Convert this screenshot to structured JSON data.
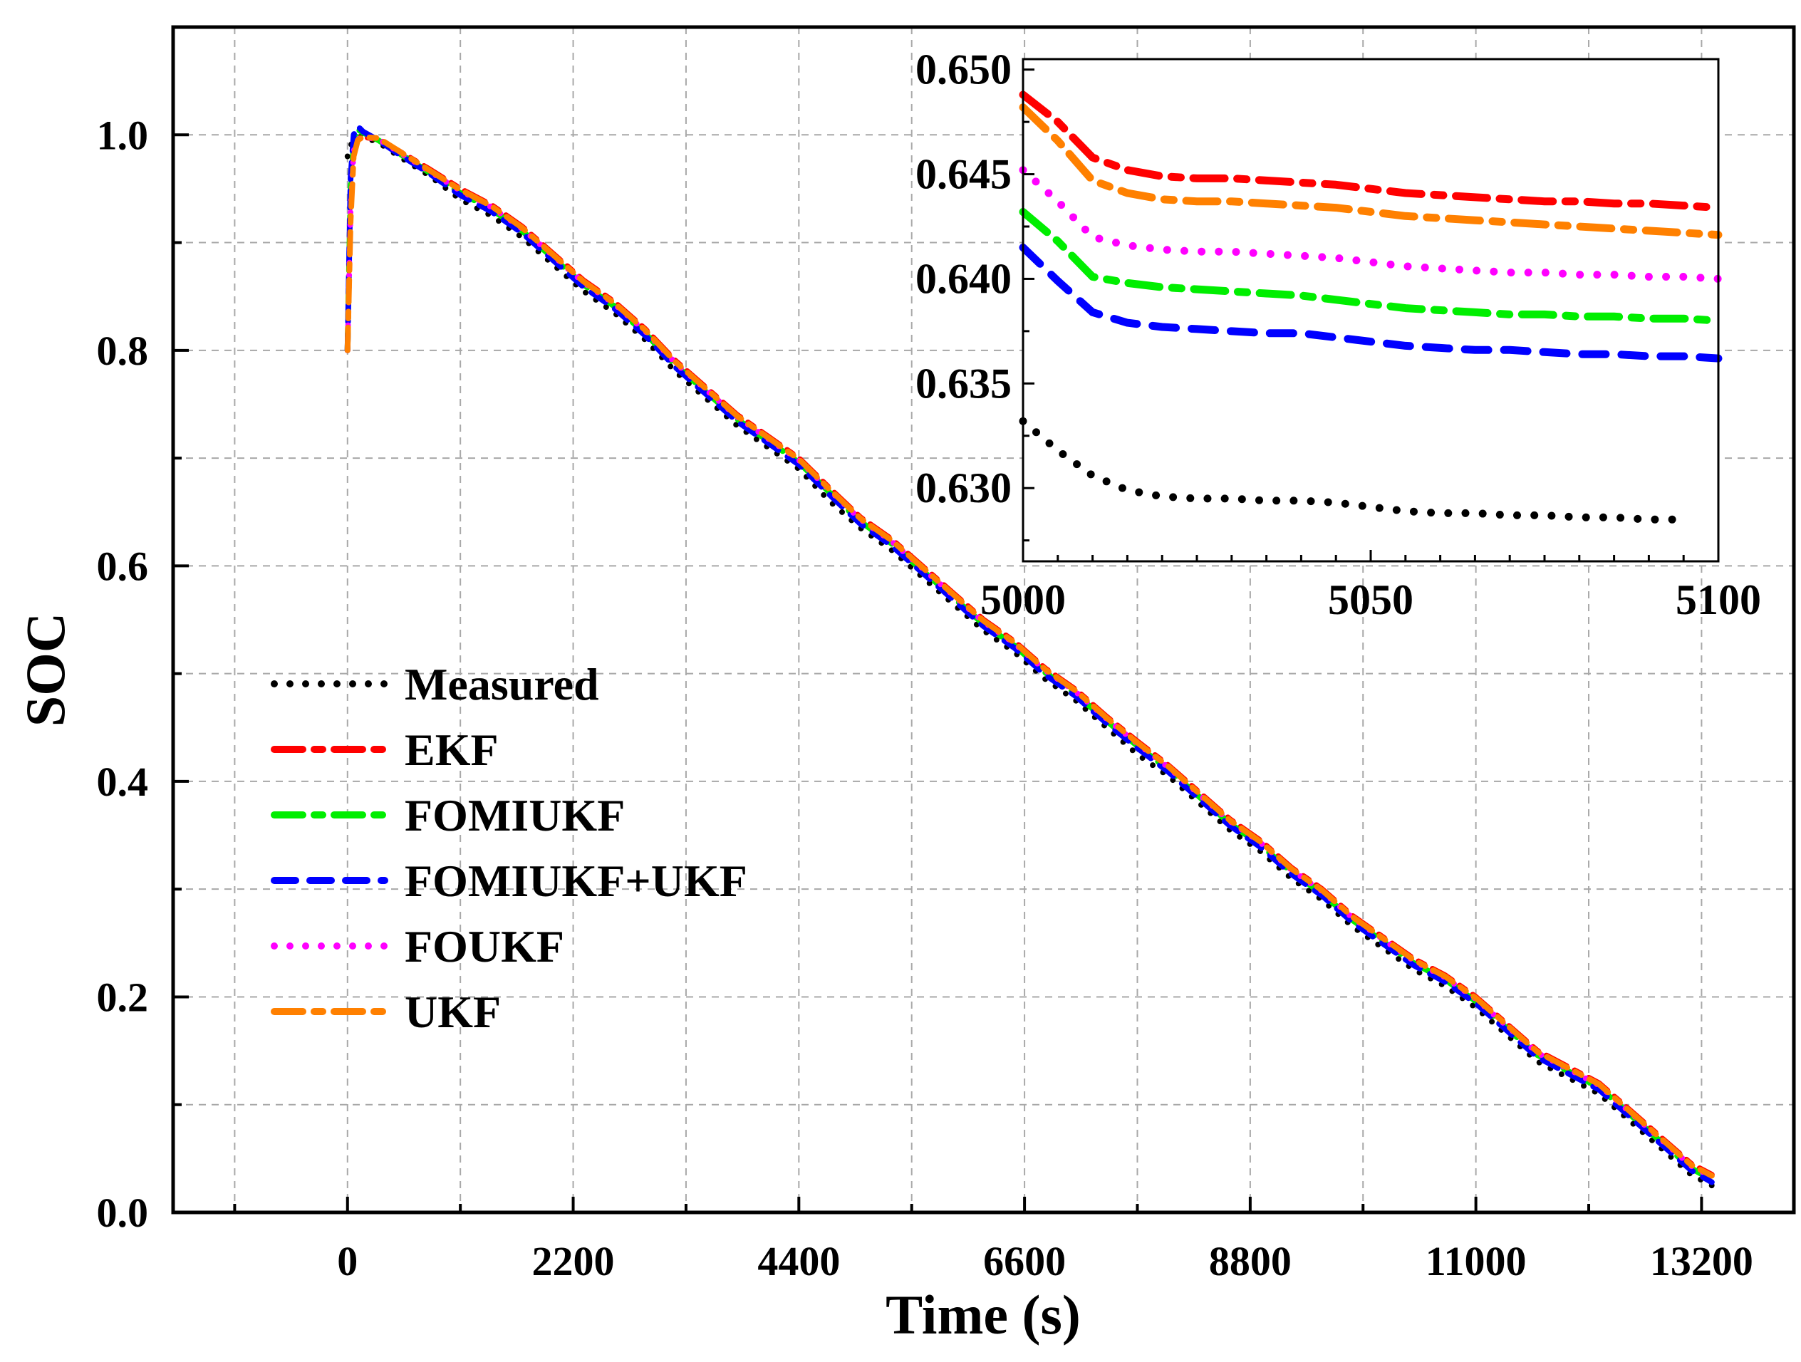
{
  "chart_data": [
    {
      "type": "line",
      "xlabel": "Time (s)",
      "ylabel": "SOC",
      "xlim": [
        -1700,
        14100
      ],
      "ylim": [
        0,
        1.1
      ],
      "xticks": [
        0,
        2200,
        4400,
        6600,
        8800,
        11000,
        13200
      ],
      "xtick_labels": [
        "0",
        "2200",
        "4400",
        "6600",
        "8800",
        "11000",
        "13200"
      ],
      "yticks": [
        0.0,
        0.2,
        0.4,
        0.6,
        0.8,
        1.0
      ],
      "ytick_labels": [
        "0.0",
        "0.2",
        "0.4",
        "0.6",
        "0.8",
        "1.0"
      ],
      "grid": true,
      "legend_position": "middle-left",
      "x": [
        0,
        30,
        60,
        100,
        150,
        300,
        500,
        800,
        1100,
        1400,
        1700,
        2000,
        2300,
        2600,
        2900,
        3200,
        3500,
        3800,
        4100,
        4400,
        4700,
        5000,
        5300,
        5600,
        5900,
        6200,
        6500,
        6800,
        7100,
        7400,
        7700,
        8000,
        8300,
        8600,
        8900,
        9200,
        9500,
        9800,
        10100,
        10400,
        10700,
        11000,
        11300,
        11600,
        11900,
        12200,
        12500,
        12800,
        13100,
        13300
      ],
      "series": [
        {
          "name": "Measured",
          "color": "#000000",
          "style": "dot",
          "values": [
            0.98,
            0.99,
            0.995,
            0.998,
            0.998,
            0.993,
            0.98,
            0.962,
            0.94,
            0.925,
            0.905,
            0.88,
            0.855,
            0.835,
            0.81,
            0.78,
            0.755,
            0.73,
            0.71,
            0.69,
            0.66,
            0.635,
            0.615,
            0.59,
            0.565,
            0.54,
            0.52,
            0.495,
            0.475,
            0.45,
            0.425,
            0.405,
            0.38,
            0.355,
            0.335,
            0.31,
            0.29,
            0.265,
            0.245,
            0.225,
            0.21,
            0.19,
            0.165,
            0.14,
            0.125,
            0.11,
            0.085,
            0.06,
            0.035,
            0.025
          ]
        },
        {
          "name": "EKF",
          "color": "#ff0000",
          "style": "dash-dot",
          "values": [
            0.8,
            0.94,
            0.99,
            0.997,
            0.998,
            0.996,
            0.985,
            0.968,
            0.95,
            0.935,
            0.915,
            0.89,
            0.865,
            0.845,
            0.82,
            0.79,
            0.765,
            0.74,
            0.72,
            0.7,
            0.672,
            0.645,
            0.625,
            0.6,
            0.575,
            0.55,
            0.53,
            0.505,
            0.485,
            0.46,
            0.437,
            0.415,
            0.39,
            0.365,
            0.345,
            0.32,
            0.3,
            0.275,
            0.255,
            0.235,
            0.22,
            0.2,
            0.175,
            0.15,
            0.135,
            0.12,
            0.095,
            0.07,
            0.045,
            0.035
          ]
        },
        {
          "name": "FOMIUKF",
          "color": "#00ee00",
          "style": "dash-dot",
          "values": [
            0.8,
            0.95,
            0.99,
            1.005,
            1.002,
            0.995,
            0.983,
            0.965,
            0.946,
            0.931,
            0.911,
            0.886,
            0.861,
            0.841,
            0.816,
            0.786,
            0.761,
            0.736,
            0.716,
            0.696,
            0.668,
            0.641,
            0.621,
            0.596,
            0.571,
            0.546,
            0.526,
            0.501,
            0.481,
            0.456,
            0.433,
            0.411,
            0.386,
            0.361,
            0.341,
            0.316,
            0.296,
            0.271,
            0.251,
            0.231,
            0.216,
            0.196,
            0.171,
            0.146,
            0.131,
            0.116,
            0.091,
            0.066,
            0.041,
            0.03
          ]
        },
        {
          "name": "FOMIUKF+UKF",
          "color": "#0000ff",
          "style": "dash",
          "values": [
            0.8,
            0.96,
            1.0,
            1.008,
            1.003,
            0.995,
            0.982,
            0.964,
            0.944,
            0.929,
            0.909,
            0.884,
            0.859,
            0.839,
            0.814,
            0.784,
            0.759,
            0.734,
            0.714,
            0.694,
            0.666,
            0.639,
            0.619,
            0.594,
            0.569,
            0.544,
            0.524,
            0.499,
            0.479,
            0.454,
            0.431,
            0.409,
            0.384,
            0.359,
            0.339,
            0.314,
            0.294,
            0.269,
            0.249,
            0.229,
            0.214,
            0.194,
            0.169,
            0.144,
            0.129,
            0.114,
            0.089,
            0.064,
            0.039,
            0.028
          ]
        },
        {
          "name": "FOUKF",
          "color": "#ff00ff",
          "style": "dot",
          "values": [
            0.8,
            0.93,
            0.985,
            0.996,
            0.998,
            0.996,
            0.984,
            0.966,
            0.948,
            0.933,
            0.913,
            0.888,
            0.863,
            0.843,
            0.818,
            0.788,
            0.763,
            0.738,
            0.718,
            0.698,
            0.67,
            0.643,
            0.623,
            0.598,
            0.573,
            0.548,
            0.528,
            0.503,
            0.483,
            0.458,
            0.435,
            0.413,
            0.388,
            0.363,
            0.343,
            0.318,
            0.298,
            0.273,
            0.253,
            0.233,
            0.218,
            0.198,
            0.173,
            0.148,
            0.133,
            0.118,
            0.093,
            0.068,
            0.043,
            0.033
          ]
        },
        {
          "name": "UKF",
          "color": "#ff8000",
          "style": "dash-dot",
          "values": [
            0.8,
            0.92,
            0.98,
            0.995,
            0.998,
            0.997,
            0.985,
            0.967,
            0.949,
            0.934,
            0.914,
            0.889,
            0.864,
            0.844,
            0.819,
            0.789,
            0.764,
            0.739,
            0.719,
            0.699,
            0.671,
            0.644,
            0.624,
            0.599,
            0.574,
            0.549,
            0.529,
            0.504,
            0.484,
            0.459,
            0.436,
            0.414,
            0.389,
            0.364,
            0.344,
            0.319,
            0.299,
            0.274,
            0.254,
            0.234,
            0.219,
            0.199,
            0.174,
            0.149,
            0.134,
            0.119,
            0.094,
            0.069,
            0.044,
            0.034
          ]
        }
      ]
    },
    {
      "type": "line",
      "xlim": [
        5000,
        5100
      ],
      "ylim": [
        0.6265,
        0.6505
      ],
      "xticks": [
        5000,
        5050,
        5100
      ],
      "xtick_labels": [
        "5000",
        "5050",
        "5100"
      ],
      "yticks": [
        0.63,
        0.635,
        0.64,
        0.645,
        0.65
      ],
      "ytick_labels": [
        "0.630",
        "0.635",
        "0.640",
        "0.645",
        "0.650"
      ],
      "grid": false,
      "x": [
        5000,
        5005,
        5010,
        5015,
        5020,
        5025,
        5030,
        5035,
        5040,
        5045,
        5050,
        5055,
        5060,
        5065,
        5070,
        5075,
        5080,
        5085,
        5090,
        5095,
        5100
      ],
      "series": [
        {
          "name": "Measured",
          "color": "#000000",
          "style": "dot",
          "values": [
            0.6332,
            0.6318,
            0.6306,
            0.6299,
            0.6296,
            0.6295,
            0.6295,
            0.6294,
            0.6294,
            0.6293,
            0.6291,
            0.6289,
            0.6288,
            0.6288,
            0.6287,
            0.6287,
            0.6286,
            0.6286,
            0.6285,
            0.6285,
            null
          ]
        },
        {
          "name": "EKF",
          "color": "#ff0000",
          "style": "dash-dot",
          "values": [
            0.6488,
            0.6475,
            0.6458,
            0.6452,
            0.6449,
            0.6448,
            0.6448,
            0.6447,
            0.6446,
            0.6445,
            0.6443,
            0.6441,
            0.644,
            0.6439,
            0.6438,
            0.6437,
            0.6437,
            0.6436,
            0.6436,
            0.6435,
            0.6434
          ]
        },
        {
          "name": "FOMIUKF",
          "color": "#00ee00",
          "style": "dash-dot",
          "values": [
            0.6432,
            0.6418,
            0.6401,
            0.6398,
            0.6396,
            0.6395,
            0.6394,
            0.6393,
            0.6392,
            0.639,
            0.6388,
            0.6386,
            0.6385,
            0.6384,
            0.6383,
            0.6383,
            0.6382,
            0.6382,
            0.6381,
            0.6381,
            0.638
          ]
        },
        {
          "name": "FOMIUKF+UKF",
          "color": "#0000ff",
          "style": "dash",
          "values": [
            0.6415,
            0.6399,
            0.6384,
            0.6379,
            0.6377,
            0.6376,
            0.6375,
            0.6374,
            0.6374,
            0.6372,
            0.637,
            0.6368,
            0.6367,
            0.6366,
            0.6366,
            0.6365,
            0.6364,
            0.6364,
            0.6363,
            0.6363,
            0.6362
          ]
        },
        {
          "name": "FOUKF",
          "color": "#ff00ff",
          "style": "dot",
          "values": [
            0.6452,
            0.6437,
            0.642,
            0.6416,
            0.6414,
            0.6413,
            0.6413,
            0.6412,
            0.6411,
            0.641,
            0.6408,
            0.6406,
            0.6405,
            0.6404,
            0.6403,
            0.6403,
            0.6402,
            0.6402,
            0.6401,
            0.6401,
            0.64
          ]
        },
        {
          "name": "UKF",
          "color": "#ff8000",
          "style": "dash-dot",
          "values": [
            0.6482,
            0.6466,
            0.6447,
            0.6441,
            0.6438,
            0.6437,
            0.6437,
            0.6436,
            0.6435,
            0.6434,
            0.6432,
            0.643,
            0.6429,
            0.6428,
            0.6427,
            0.6426,
            0.6425,
            0.6424,
            0.6423,
            0.6422,
            0.6421
          ]
        }
      ]
    }
  ],
  "legend": [
    {
      "label": "Measured"
    },
    {
      "label": "EKF"
    },
    {
      "label": "FOMIUKF"
    },
    {
      "label": "FOMIUKF+UKF"
    },
    {
      "label": "FOUKF"
    },
    {
      "label": "UKF"
    }
  ]
}
